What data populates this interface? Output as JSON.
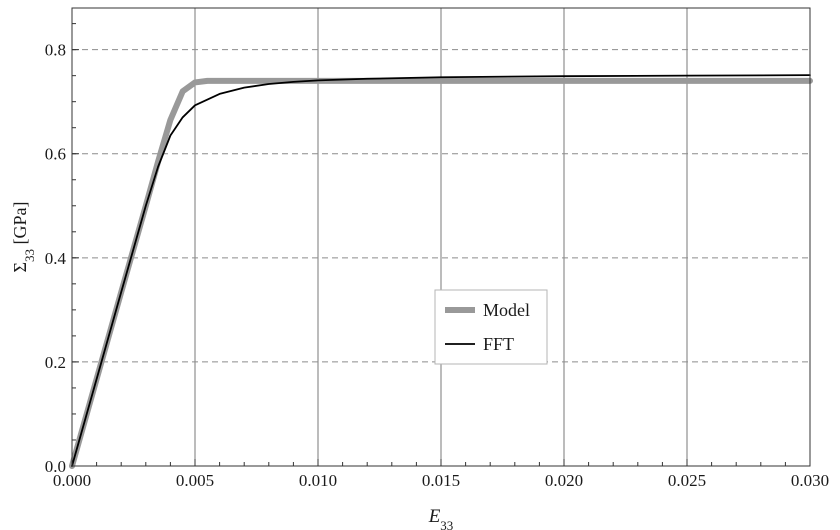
{
  "chart_data": {
    "type": "line",
    "xlabel": "E",
    "xlabel_sub": "33",
    "ylabel": "Σ",
    "ylabel_sub": "33",
    "ylabel_unit": " [GPa]",
    "xlim": [
      0,
      0.03
    ],
    "ylim": [
      0,
      0.88
    ],
    "xticks": [
      0,
      0.005,
      0.01,
      0.015,
      0.02,
      0.025,
      0.03
    ],
    "xtick_labels": [
      "0.000",
      "0.005",
      "0.010",
      "0.015",
      "0.020",
      "0.025",
      "0.030"
    ],
    "yticks": [
      0,
      0.2,
      0.4,
      0.6,
      0.8
    ],
    "ytick_labels": [
      "0.0",
      "0.2",
      "0.4",
      "0.6",
      "0.8"
    ],
    "grid": "vertical solid at x ticks, horizontal dashed at y ticks",
    "legend_position": "center-right",
    "series": [
      {
        "name": "Model",
        "color": "#999999",
        "x": [
          0,
          0.001,
          0.002,
          0.003,
          0.0035,
          0.004,
          0.0045,
          0.005,
          0.0055,
          0.006,
          0.008,
          0.01,
          0.015,
          0.02,
          0.025,
          0.03
        ],
        "y": [
          0,
          0.167,
          0.334,
          0.5,
          0.585,
          0.665,
          0.72,
          0.737,
          0.74,
          0.74,
          0.74,
          0.74,
          0.74,
          0.74,
          0.74,
          0.74
        ]
      },
      {
        "name": "FFT",
        "color": "#000000",
        "x": [
          0,
          0.001,
          0.002,
          0.003,
          0.0035,
          0.004,
          0.0045,
          0.005,
          0.006,
          0.007,
          0.008,
          0.009,
          0.01,
          0.012,
          0.015,
          0.02,
          0.025,
          0.03
        ],
        "y": [
          0,
          0.167,
          0.334,
          0.5,
          0.575,
          0.635,
          0.67,
          0.693,
          0.715,
          0.727,
          0.734,
          0.738,
          0.741,
          0.744,
          0.747,
          0.749,
          0.75,
          0.751
        ]
      }
    ]
  }
}
